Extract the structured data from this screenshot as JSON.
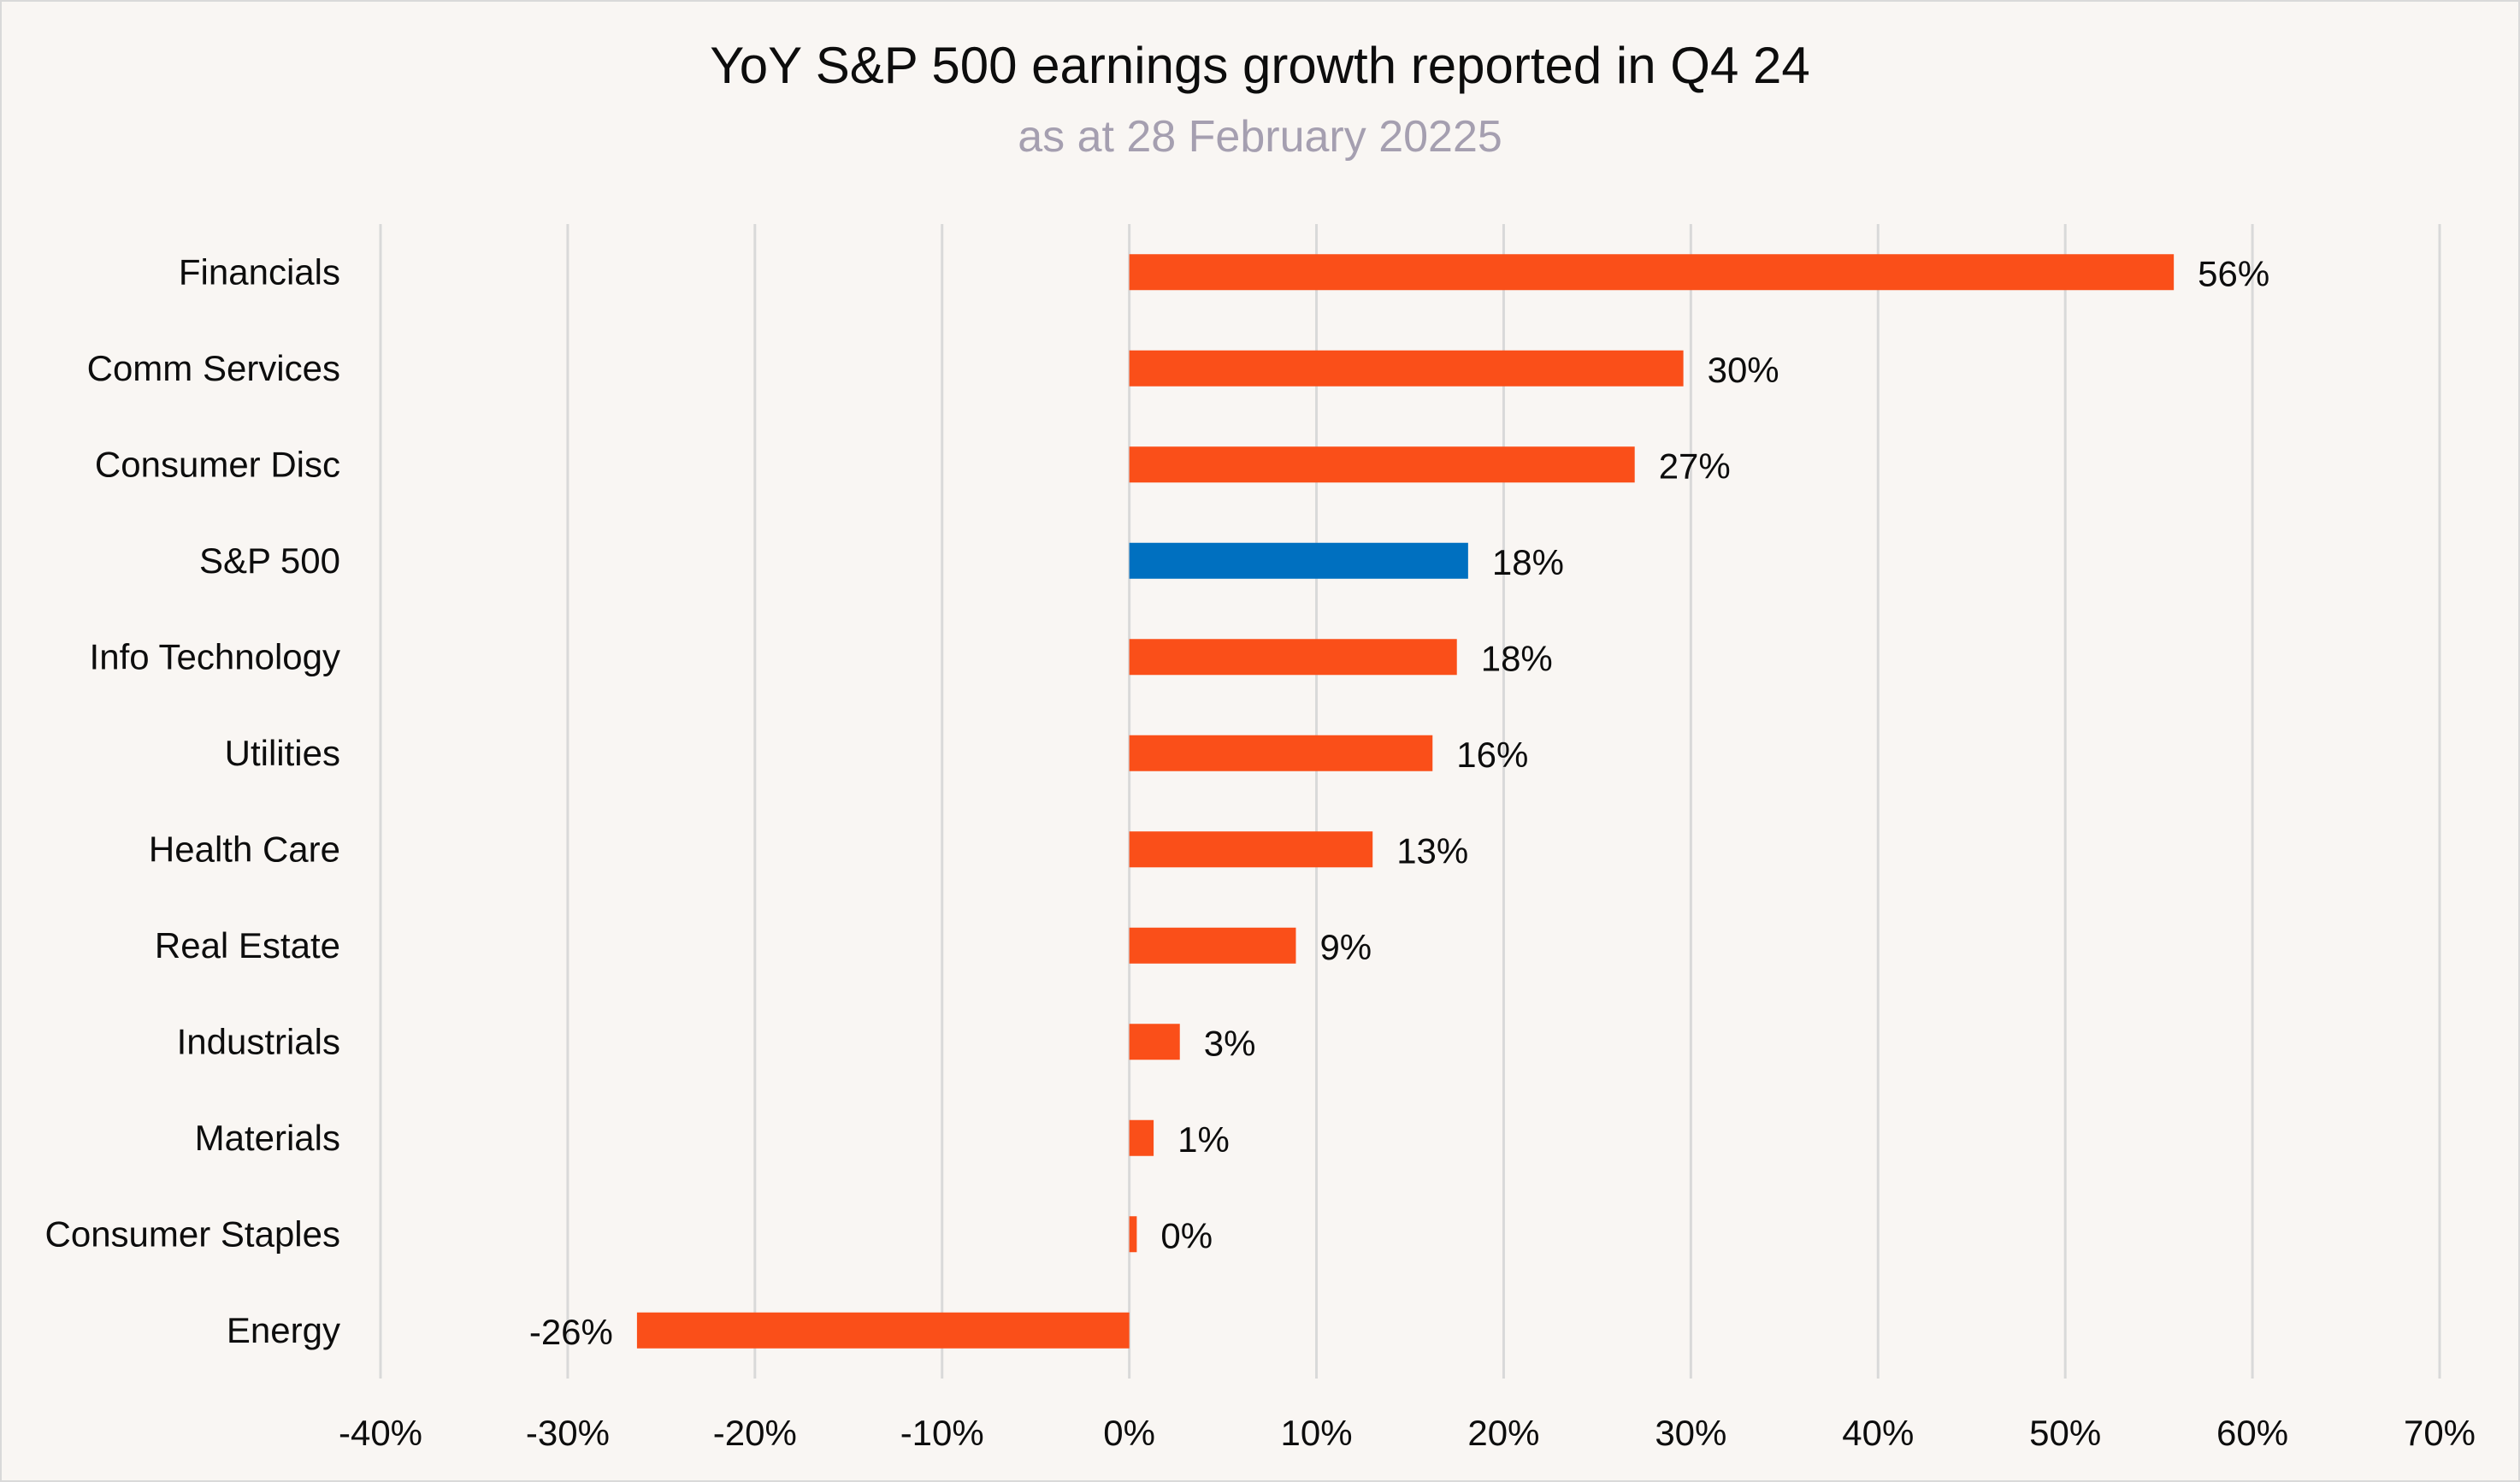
{
  "chart_data": {
    "type": "bar",
    "orientation": "horizontal",
    "title": "YoY S&P 500 earnings growth reported in Q4 24",
    "subtitle": "as at 28 February 20225",
    "xlabel": "",
    "ylabel": "",
    "xlim": [
      -40,
      70
    ],
    "x_tick_step": 10,
    "x_ticks": [
      "-40%",
      "-30%",
      "-20%",
      "-10%",
      "0%",
      "10%",
      "20%",
      "30%",
      "40%",
      "50%",
      "60%",
      "70%"
    ],
    "grid": true,
    "legend": "none",
    "categories": [
      "Financials",
      "Comm Services",
      "Consumer Disc",
      "S&P 500",
      "Info Technology",
      "Utilities",
      "Health Care",
      "Real Estate",
      "Industrials",
      "Materials",
      "Consumer Staples",
      "Energy"
    ],
    "values": [
      55.8,
      29.6,
      27.0,
      18.1,
      17.5,
      16.2,
      13.0,
      8.9,
      2.7,
      1.3,
      0.4,
      -26.3
    ],
    "data_labels": [
      "56%",
      "30%",
      "27%",
      "18%",
      "18%",
      "16%",
      "13%",
      "9%",
      "3%",
      "1%",
      "0%",
      "-26%"
    ],
    "highlight_category": "S&P 500",
    "colors": {
      "default": "#FA4F19",
      "highlight": "#0070C0",
      "grid": "#D9D9D9",
      "background": "#F9F6F3"
    }
  }
}
